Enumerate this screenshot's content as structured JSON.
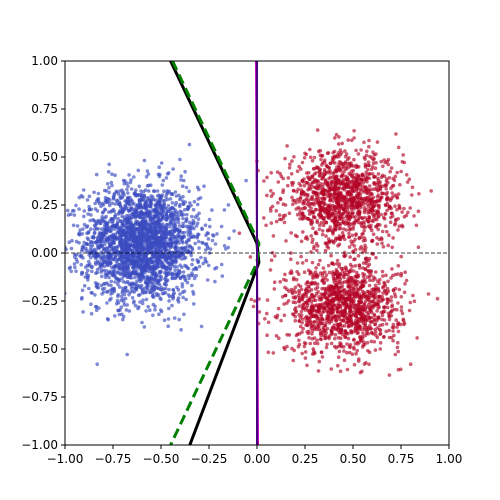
{
  "chart_data": {
    "type": "scatter",
    "title": "",
    "xlabel": "",
    "ylabel": "",
    "xlim": [
      -1.0,
      1.0
    ],
    "ylim": [
      -1.0,
      1.0
    ],
    "grid": false,
    "legend": "none",
    "xticks": [
      -1.0,
      -0.75,
      -0.5,
      -0.25,
      0.0,
      0.25,
      0.5,
      0.75,
      1.0
    ],
    "yticks": [
      -1.0,
      -0.75,
      -0.5,
      -0.25,
      0.0,
      0.25,
      0.5,
      0.75,
      1.0
    ],
    "xtick_labels": [
      "−1.00",
      "−0.75",
      "−0.50",
      "−0.25",
      "0.00",
      "0.25",
      "0.50",
      "0.75",
      "1.00"
    ],
    "ytick_labels": [
      "−1.00",
      "−0.75",
      "−0.50",
      "−0.25",
      "0.00",
      "0.25",
      "0.50",
      "0.75",
      "1.00"
    ],
    "clusters": [
      {
        "color": "#3a4cc0",
        "center": [
          -0.6,
          0.05
        ],
        "spread": [
          0.15,
          0.15
        ],
        "count": 2500
      },
      {
        "color": "#b40426",
        "center": [
          0.45,
          0.28
        ],
        "spread": [
          0.15,
          0.12
        ],
        "count": 1250
      },
      {
        "color": "#b40426",
        "center": [
          0.45,
          -0.28
        ],
        "spread": [
          0.15,
          0.12
        ],
        "count": 1250
      }
    ],
    "lines": [
      {
        "style": "solid",
        "color": "#000000",
        "points": [
          [
            -0.45,
            1.0
          ],
          [
            0.0,
            0.05
          ],
          [
            0.01,
            -0.05
          ],
          [
            -0.35,
            -1.0
          ]
        ]
      },
      {
        "style": "dashed",
        "color": "#008000",
        "points": [
          [
            -0.44,
            1.0
          ],
          [
            0.01,
            0.05
          ],
          [
            0.0,
            -0.05
          ],
          [
            -0.45,
            -1.0
          ]
        ]
      },
      {
        "style": "solid",
        "color": "#bf00bf",
        "points": [
          [
            -0.005,
            1.0
          ],
          [
            0.005,
            -1.0
          ]
        ]
      },
      {
        "style": "solid",
        "color": "#4b0082",
        "points": [
          [
            0.0,
            1.0
          ],
          [
            0.0,
            -1.0
          ]
        ]
      }
    ],
    "reference_lines": [
      {
        "orientation": "horizontal",
        "value": 0.0,
        "style": "dashed",
        "color": "#000000"
      },
      {
        "orientation": "vertical",
        "value": 0.0,
        "style": "dotted",
        "color": "#000000"
      }
    ]
  }
}
